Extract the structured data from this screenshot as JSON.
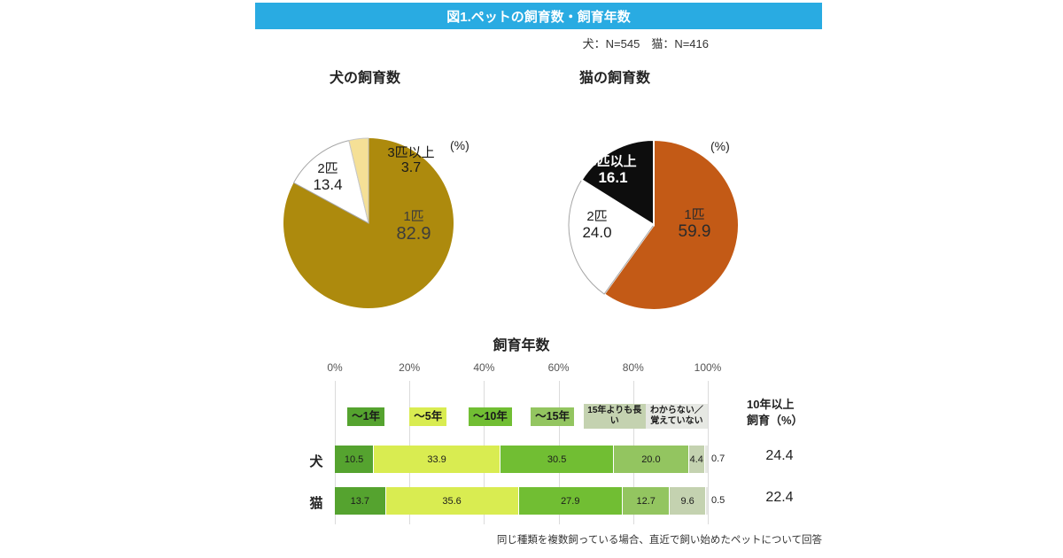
{
  "header": {
    "title": "図1.ペットの飼育数・飼育年数",
    "bar_color": "#29ABE2",
    "sample_note": "犬：N=545　猫：N=416"
  },
  "chart_data": [
    {
      "type": "pie",
      "title": "犬の飼育数",
      "unit": "(%)",
      "slices": [
        {
          "label": "1匹",
          "value": 82.9,
          "color": "#AD8A0D",
          "border": null,
          "text_color": "#3C3C3C"
        },
        {
          "label": "2匹",
          "value": 13.4,
          "color": "#FFFFFF",
          "border": "#A6A6A6",
          "text_color": "#1A1A1A"
        },
        {
          "label": "3匹以上",
          "value": 3.7,
          "color": "#F5E096",
          "border": "#C8C8C8",
          "text_color": "#1A1A1A"
        }
      ]
    },
    {
      "type": "pie",
      "title": "猫の飼育数",
      "unit": "(%)",
      "slices": [
        {
          "label": "1匹",
          "value": 59.9,
          "color": "#C35A16",
          "border": "#FFFFFF",
          "text_color": "#2B2B2B"
        },
        {
          "label": "2匹",
          "value": 24.0,
          "color": "#FFFFFF",
          "border": "#A6A6A6",
          "text_color": "#1A1A1A"
        },
        {
          "label": "3匹以上",
          "value": 16.1,
          "color": "#0D0D0D",
          "border": "#FFFFFF",
          "text_color": "#FFFFFF"
        }
      ]
    },
    {
      "type": "bar",
      "orientation": "horizontal-stacked",
      "title": "飼育年数",
      "axis_ticks": [
        "0%",
        "20%",
        "40%",
        "60%",
        "80%",
        "100%"
      ],
      "xlim": [
        0,
        100
      ],
      "grid": true,
      "segments": [
        {
          "label": "～1年",
          "color": "#55A32F"
        },
        {
          "label": "～5年",
          "color": "#D9EC51"
        },
        {
          "label": "～10年",
          "color": "#71BE33"
        },
        {
          "label": "～15年",
          "color": "#93C560"
        },
        {
          "label": "15年よりも長い",
          "color": "#C4D2B0"
        },
        {
          "label": "わからない／覚えていない",
          "color": "#E6E8E3"
        }
      ],
      "rows": [
        {
          "label": "犬",
          "values": [
            10.5,
            33.9,
            30.5,
            20.0,
            4.4,
            0.7
          ]
        },
        {
          "label": "猫",
          "values": [
            13.7,
            35.6,
            27.9,
            12.7,
            9.6,
            0.5
          ]
        }
      ],
      "right_column": {
        "line1": "10年以上",
        "line2": "飼育（%）",
        "values": [
          24.4,
          22.4
        ]
      }
    }
  ],
  "footnote": "同じ種類を複数飼っている場合、直近で飼い始めたペットについて回答"
}
